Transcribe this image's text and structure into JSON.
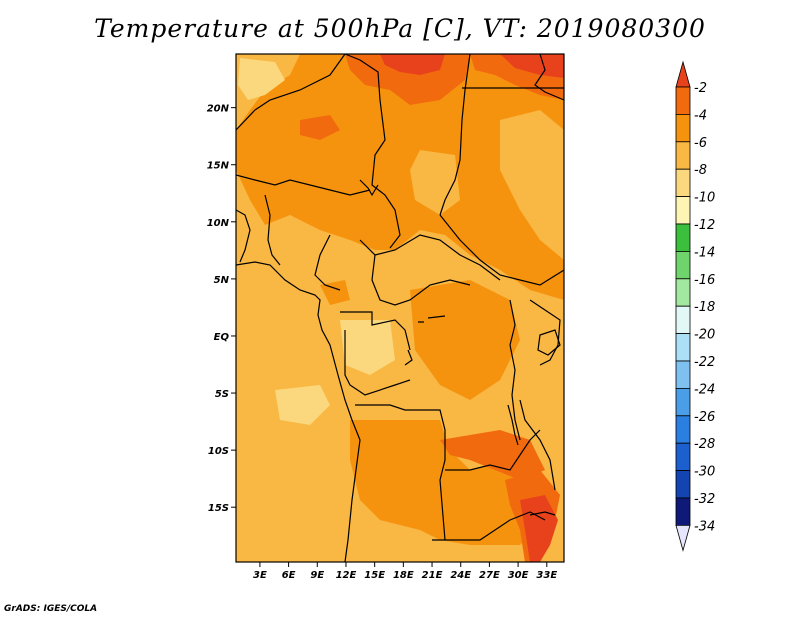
{
  "title": "Temperature at 500hPa [C], VT: 2019080300",
  "footer": "GrADS: IGES/COLA",
  "chart_data": {
    "type": "heatmap",
    "variable": "Temperature at 500hPa",
    "units": "C",
    "valid_time": "2019080300",
    "x_axis": {
      "ticks": [
        "3E",
        "6E",
        "9E",
        "12E",
        "15E",
        "18E",
        "21E",
        "24E",
        "27E",
        "30E",
        "33E"
      ],
      "values": [
        3,
        6,
        9,
        12,
        15,
        18,
        21,
        24,
        27,
        30,
        33
      ],
      "range": [
        0.5,
        34.8
      ]
    },
    "y_axis": {
      "ticks": [
        "20N",
        "15N",
        "10N",
        "5N",
        "EQ",
        "5S",
        "10S",
        "15S"
      ],
      "values": [
        20,
        15,
        10,
        5,
        0,
        -5,
        -10,
        -15
      ],
      "range": [
        -19.8,
        24.7
      ]
    },
    "colorbar": {
      "labels": [
        "-2",
        "-4",
        "-6",
        "-8",
        "-10",
        "-12",
        "-14",
        "-16",
        "-18",
        "-20",
        "-22",
        "-24",
        "-26",
        "-28",
        "-30",
        "-32",
        "-34"
      ],
      "colors": [
        "#e8421c",
        "#f26a0e",
        "#f5930e",
        "#f9b744",
        "#fbd87d",
        "#fef4b4",
        "#3cbf3c",
        "#6fd46b",
        "#a2e8a0",
        "#e2f8f6",
        "#ace0f6",
        "#7ec0f0",
        "#4a9ee8",
        "#2a7fe0",
        "#1c60d0",
        "#1444b0",
        "#0f1a78",
        "#e6e6ff"
      ]
    },
    "dominant_range_C": [
      -8,
      -2
    ],
    "warmest_areas": [
      "north edge near 15E-20E, 24N",
      "northeast 28E-34E, 24N",
      "southeast 30E-33E, 14S-19S"
    ]
  },
  "icons": [
    "over-arrow-icon",
    "under-arrow-icon"
  ]
}
